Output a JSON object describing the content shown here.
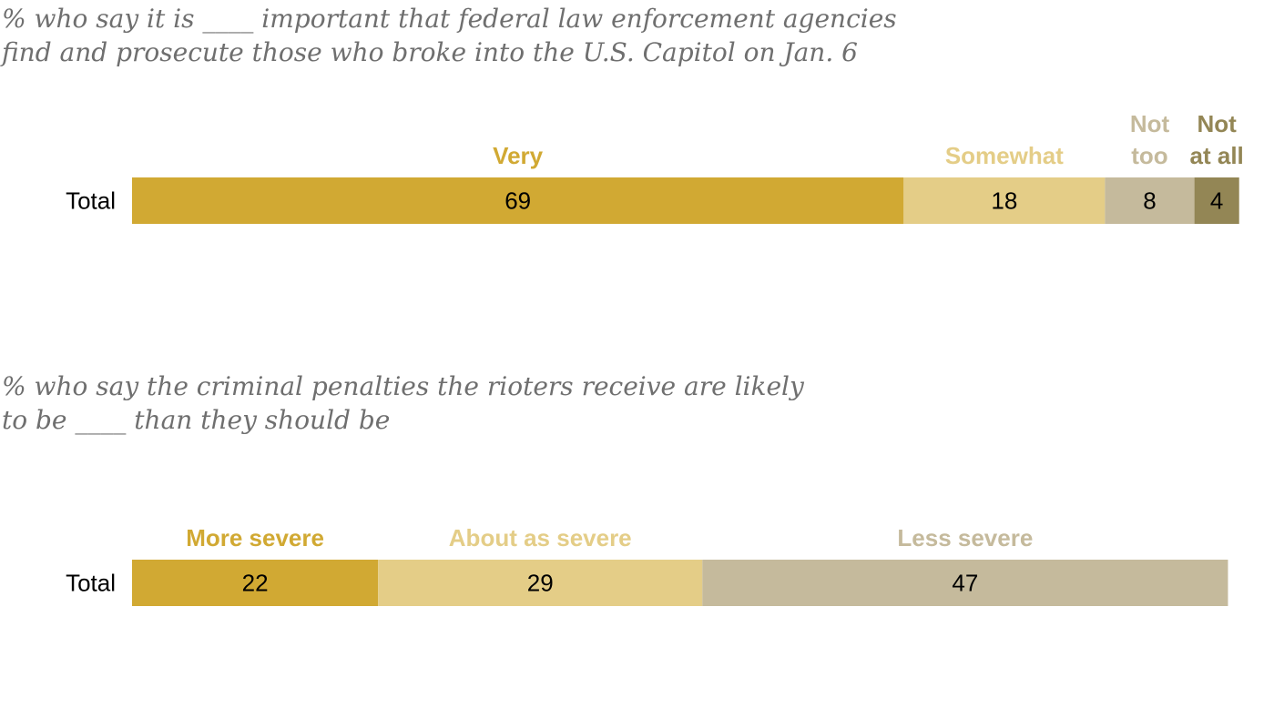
{
  "chart_data": [
    {
      "type": "bar",
      "title_lines": [
        "% who say it is ____ important that federal law enforcement agencies",
        "find and prosecute those who broke into the U.S. Capitol on Jan. 6"
      ],
      "categories": [
        "Total"
      ],
      "series": [
        {
          "name_lines": [
            "Very"
          ],
          "values": [
            69
          ],
          "color": "#d1a933"
        },
        {
          "name_lines": [
            "Somewhat"
          ],
          "values": [
            18
          ],
          "color": "#e4cd87"
        },
        {
          "name_lines": [
            "Not",
            "too"
          ],
          "values": [
            8
          ],
          "color": "#c5ba9c"
        },
        {
          "name_lines": [
            "Not",
            "at all"
          ],
          "values": [
            4
          ],
          "color": "#938655"
        }
      ],
      "stacked": true
    },
    {
      "type": "bar",
      "title_lines": [
        "% who say the criminal penalties the rioters receive are likely",
        "to be ____ than they should be"
      ],
      "categories": [
        "Total"
      ],
      "series": [
        {
          "name_lines": [
            "More severe"
          ],
          "values": [
            22
          ],
          "color": "#d1a933"
        },
        {
          "name_lines": [
            "About as severe"
          ],
          "values": [
            29
          ],
          "color": "#e4cd87"
        },
        {
          "name_lines": [
            "Less severe"
          ],
          "values": [
            47
          ],
          "color": "#c5ba9c"
        }
      ],
      "stacked": true
    }
  ]
}
